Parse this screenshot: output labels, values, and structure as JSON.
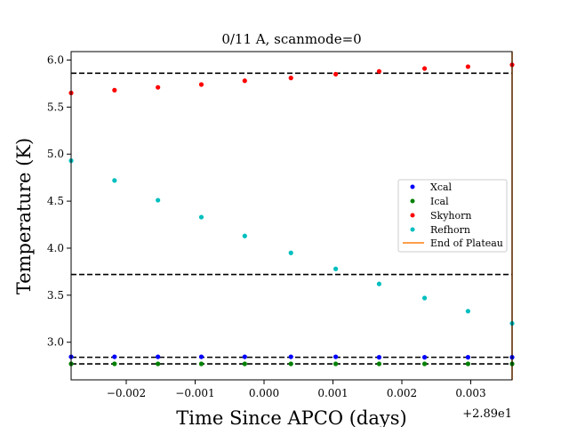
{
  "chart_data": {
    "type": "scatter",
    "title": "0/11 A, scanmode=0",
    "xlabel": "Time Since APCO (days)",
    "ylabel": "Temperature (K)",
    "x_offset_label": "+2.89e1",
    "xlim": [
      -0.0028,
      0.0036
    ],
    "ylim": [
      2.6,
      6.09
    ],
    "x_ticks": [
      -0.002,
      -0.001,
      0.0,
      0.001,
      0.002,
      0.003
    ],
    "x_tick_labels": [
      "−0.002",
      "−0.001",
      "0.000",
      "0.001",
      "0.002",
      "0.003"
    ],
    "y_ticks": [
      3.0,
      3.5,
      4.0,
      4.5,
      5.0,
      5.5,
      6.0
    ],
    "y_tick_labels": [
      "3.0",
      "3.5",
      "4.0",
      "4.5",
      "5.0",
      "5.5",
      "6.0"
    ],
    "x": [
      -0.0028,
      -0.00217,
      -0.00154,
      -0.00091,
      -0.00028,
      0.00039,
      0.00104,
      0.00167,
      0.00233,
      0.00296,
      0.0036
    ],
    "series": [
      {
        "name": "Xcal",
        "color": "#0000ff",
        "values": [
          2.845,
          2.845,
          2.845,
          2.845,
          2.845,
          2.845,
          2.845,
          2.84,
          2.84,
          2.84,
          2.84
        ]
      },
      {
        "name": "Ical",
        "color": "#008000",
        "values": [
          2.77,
          2.77,
          2.77,
          2.77,
          2.77,
          2.77,
          2.77,
          2.77,
          2.77,
          2.77,
          2.77
        ]
      },
      {
        "name": "Skyhorn",
        "color": "#ff0000",
        "values": [
          5.65,
          5.68,
          5.71,
          5.74,
          5.78,
          5.81,
          5.85,
          5.88,
          5.91,
          5.93,
          5.95
        ]
      },
      {
        "name": "Refhorn",
        "color": "#00bfbf",
        "values": [
          4.93,
          4.72,
          4.51,
          4.33,
          4.13,
          3.95,
          3.78,
          3.62,
          3.47,
          3.33,
          3.2
        ]
      }
    ],
    "hlines": [
      5.86,
      3.72,
      2.84,
      2.77
    ],
    "vline": {
      "name": "End of Plateau",
      "color": "#ff7f0e",
      "x": 0.0036
    },
    "legend_position": "center-right",
    "grid": false
  }
}
